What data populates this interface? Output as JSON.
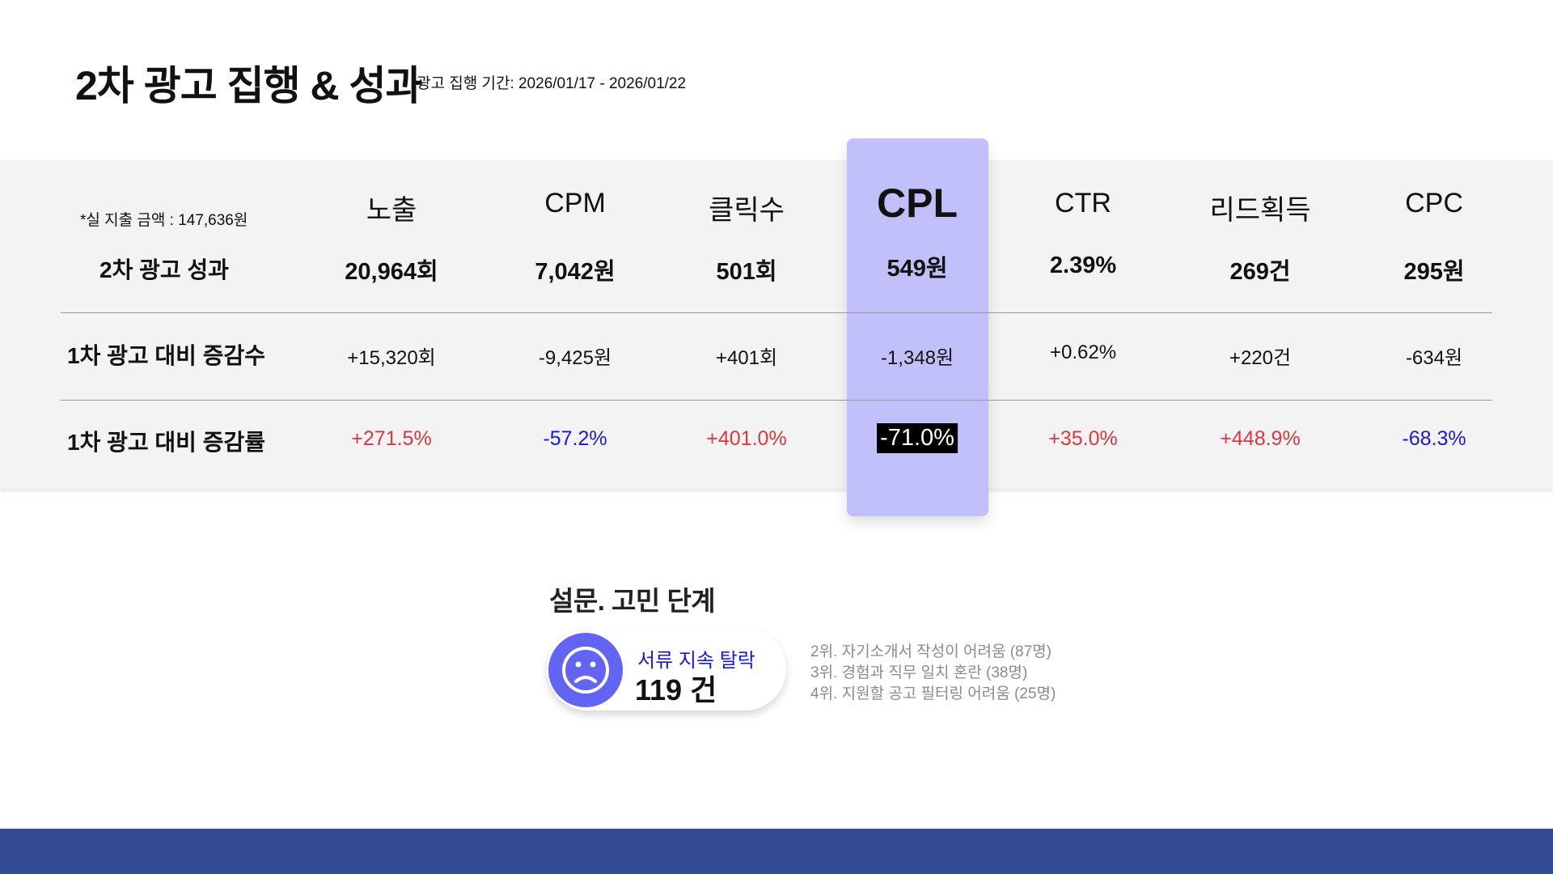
{
  "header": {
    "title": "2차 광고 집행 & 성과",
    "period": "광고 집행 기간: 2026/01/17 - 2026/01/22"
  },
  "table": {
    "spend_note": "*실 지출 금액 : 147,636원",
    "row_labels": [
      "2차 광고 성과",
      "1차 광고 대비 증감수",
      "1차 광고 대비 증감률"
    ],
    "columns": [
      {
        "header": "노출",
        "value": "20,964회",
        "change": "+15,320회",
        "rate": "+271.5%"
      },
      {
        "header": "CPM",
        "value": "7,042원",
        "change": "-9,425원",
        "rate": "-57.2%"
      },
      {
        "header": "클릭수",
        "value": "501회",
        "change": "+401회",
        "rate": "+401.0%"
      },
      {
        "header": "CPL",
        "value": "549원",
        "change": "-1,348원",
        "rate": "-71.0%"
      },
      {
        "header": "CTR",
        "value": "2.39%",
        "change": "+0.62%",
        "rate": "+35.0%"
      },
      {
        "header": "리드획득",
        "value": "269건",
        "change": "+220건",
        "rate": "+448.9%"
      },
      {
        "header": "CPC",
        "value": "295원",
        "change": "-634원",
        "rate": "-68.3%"
      }
    ],
    "highlight_color": "#c2c0fb",
    "positive_color": "#d9383e",
    "negative_color": "#1a1ad6"
  },
  "survey": {
    "title": "설문. 고민 단계",
    "top_icon": "sad-face-icon",
    "top_label": "서류 지속 탈락",
    "top_count": "119 건",
    "ranks": [
      "2위. 자기소개서 작성이 어려움 (87명)",
      "3위. 경험과 직무 일치 혼란 (38명)",
      "4위. 지원할 공고 필터링 어려움 (25명)"
    ]
  },
  "footer": {
    "color": "#334b94"
  }
}
